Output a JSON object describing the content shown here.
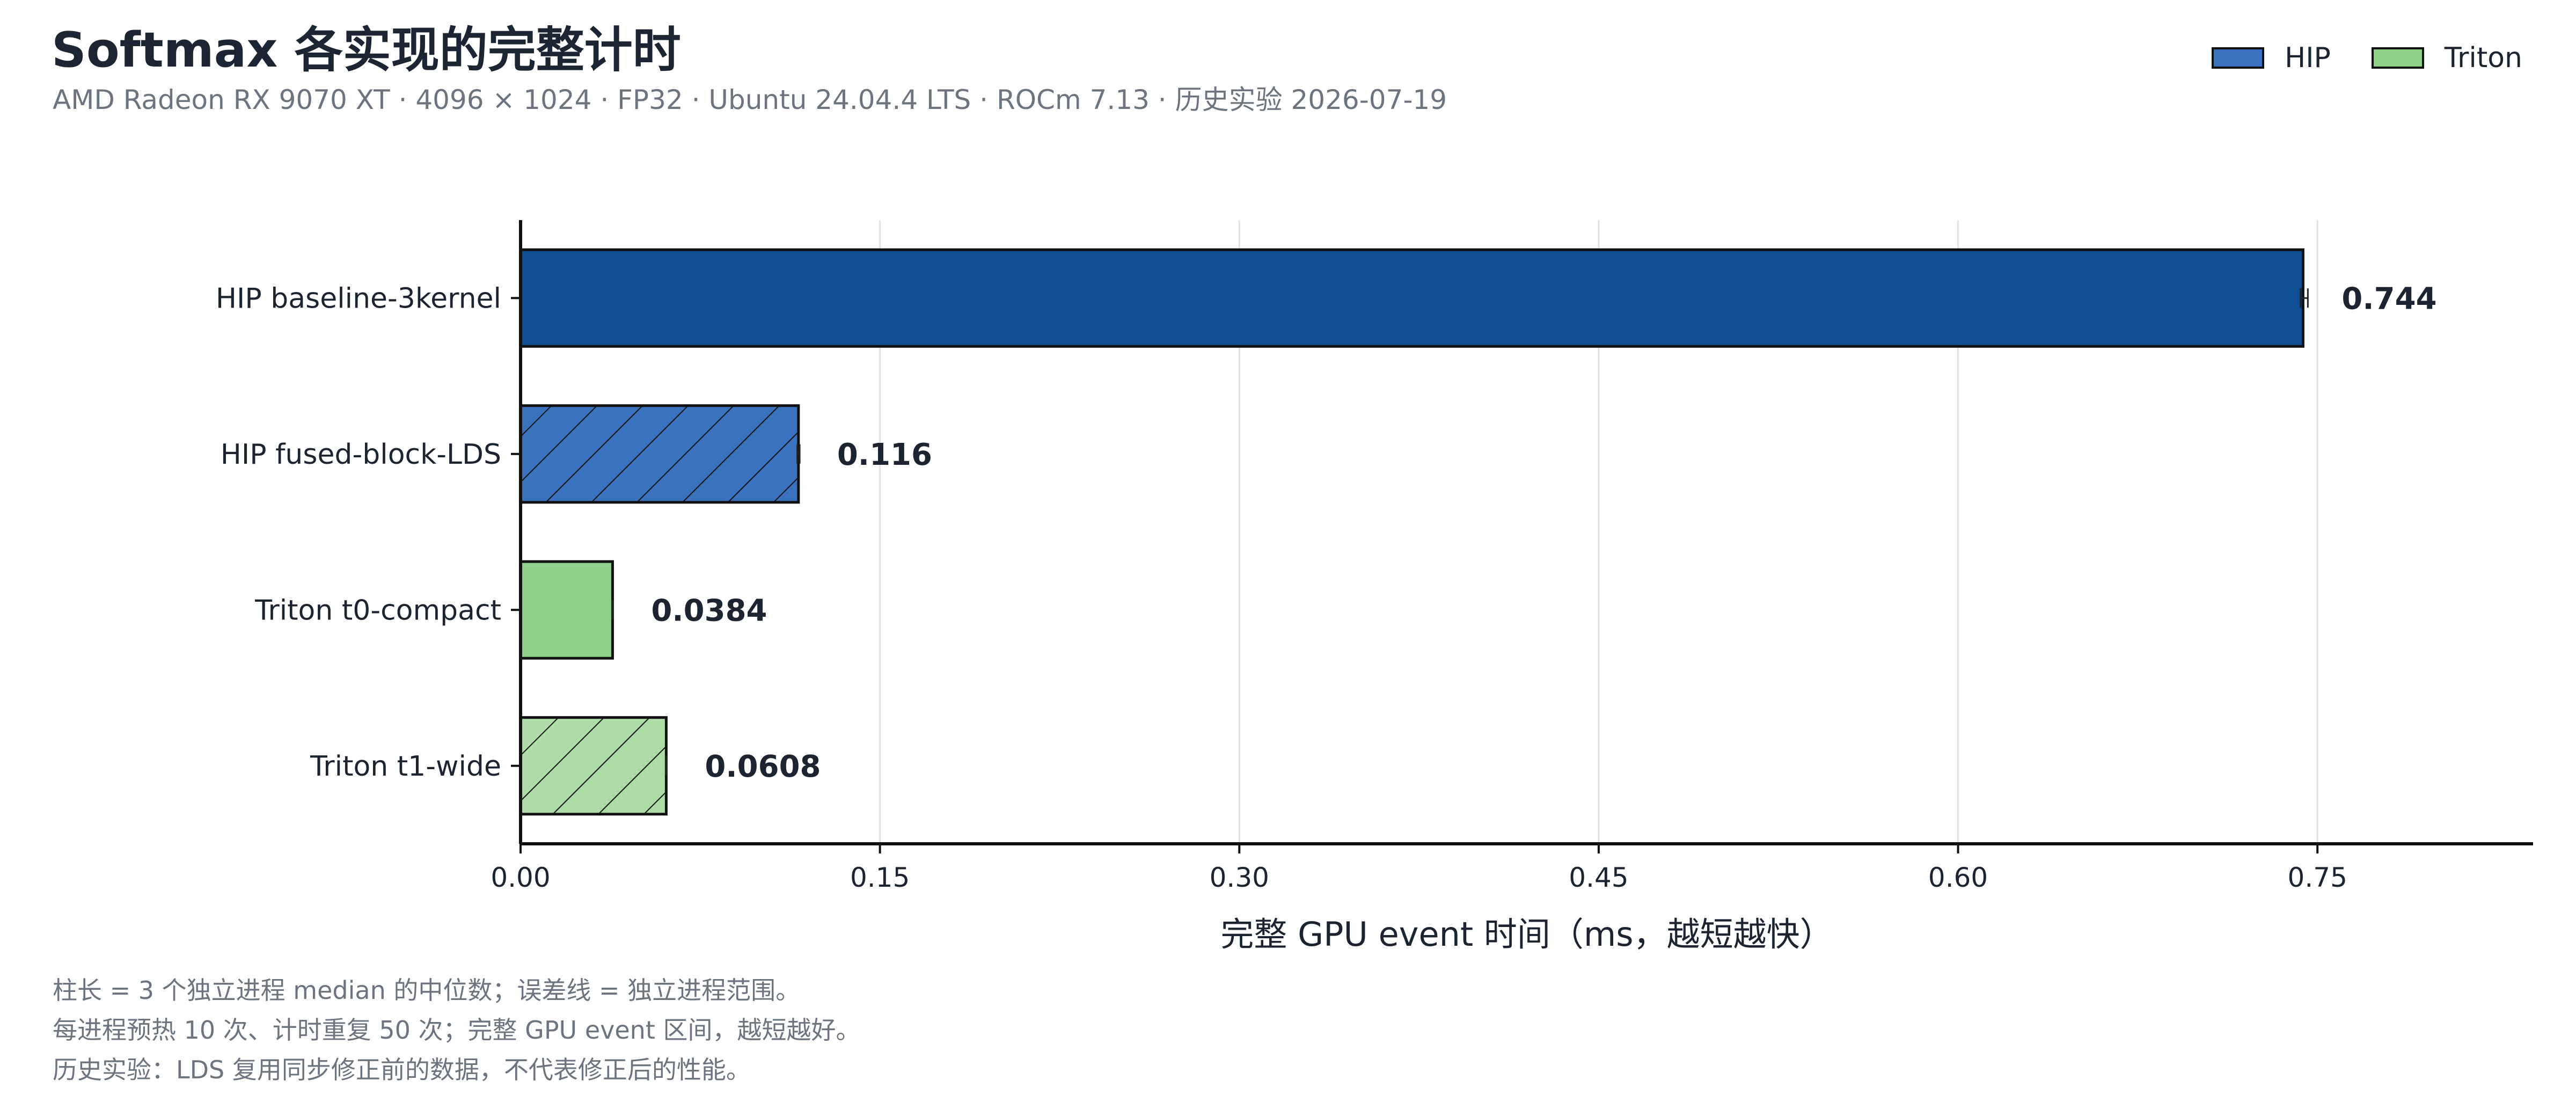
{
  "header": {
    "title": "Softmax 各实现的完整计时",
    "subtitle": "AMD Radeon RX 9070 XT · 4096 × 1024 · FP32 · Ubuntu 24.04.4 LTS · ROCm 7.13 · 历史实验 2026-07-19"
  },
  "legend": {
    "items": [
      {
        "label": "HIP",
        "color": "#3a72bf"
      },
      {
        "label": "Triton",
        "color": "#8fd08a"
      }
    ]
  },
  "chart_data": {
    "type": "bar",
    "orientation": "horizontal",
    "categories": [
      "HIP baseline-3kernel",
      "HIP fused-block-LDS",
      "Triton t0-compact",
      "Triton t1-wide"
    ],
    "values": [
      0.744,
      0.116,
      0.0384,
      0.0608
    ],
    "value_labels": [
      "0.744",
      "0.116",
      "0.0384",
      "0.0608"
    ],
    "error_ranges": [
      [
        0.743,
        0.746
      ],
      [
        0.1155,
        0.1165
      ],
      [
        0.0382,
        0.0386
      ],
      [
        0.0606,
        0.061
      ]
    ],
    "bar_styles": [
      {
        "fill": "#0f4e92",
        "hatch": false
      },
      {
        "fill": "#3a72bf",
        "hatch": true
      },
      {
        "fill": "#8fd08a",
        "hatch": false
      },
      {
        "fill": "#addca7",
        "hatch": true
      }
    ],
    "xlabel": "完整 GPU event 时间（ms，越短越快）",
    "xlim": [
      0,
      0.84
    ],
    "xticks": [
      0,
      0.15,
      0.3,
      0.45,
      0.6,
      0.75
    ],
    "xtick_labels": [
      "0.00",
      "0.15",
      "0.30",
      "0.45",
      "0.60",
      "0.75"
    ],
    "grid": "vertical",
    "legend_position": "top-right"
  },
  "notes": [
    "柱长 = 3 个独立进程 median 的中位数；误差线 = 独立进程范围。",
    "每进程预热 10 次、计时重复 50 次；完整 GPU event 区间，越短越好。",
    "历史实验：LDS 复用同步修正前的数据，不代表修正后的性能。"
  ]
}
